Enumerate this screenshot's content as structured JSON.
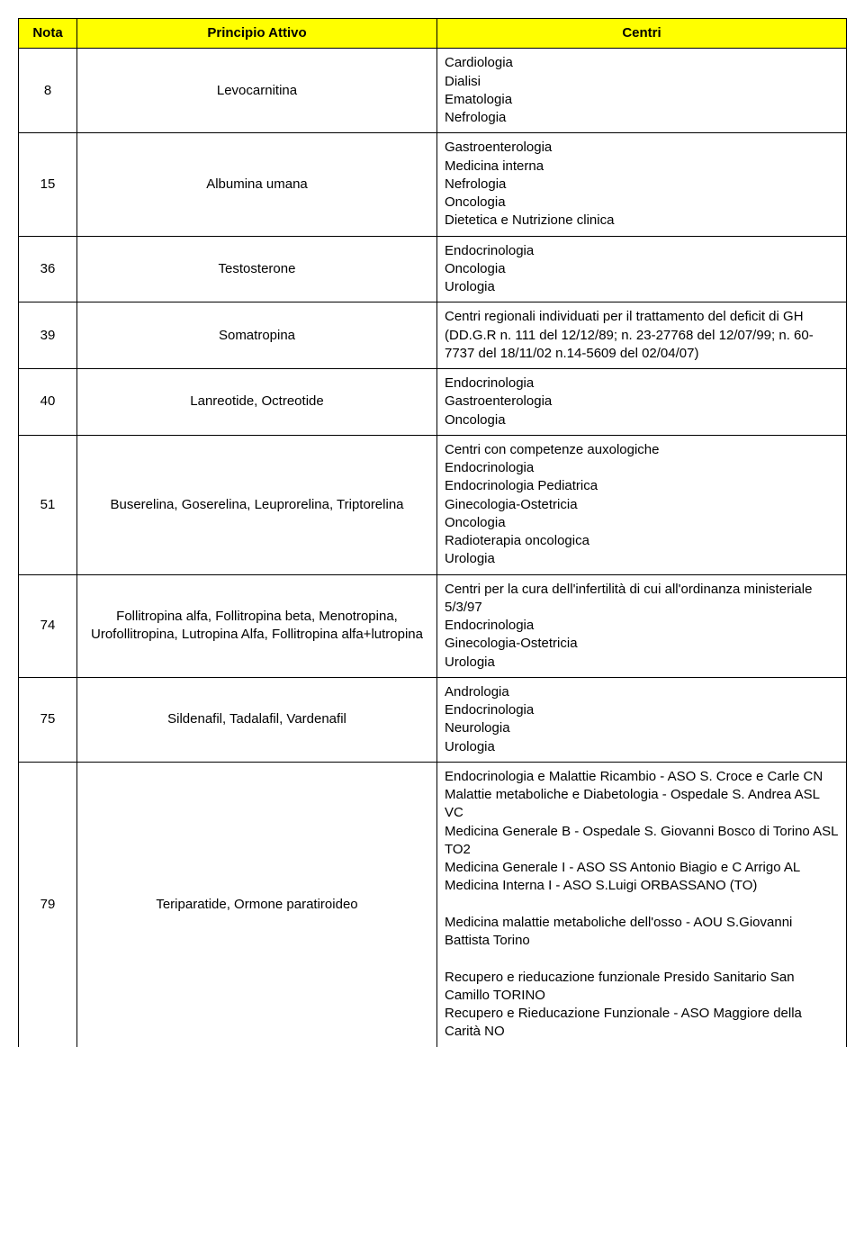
{
  "colors": {
    "header_bg": "#ffff00",
    "border": "#000000",
    "text": "#000000",
    "bg": "#ffffff"
  },
  "columns": {
    "nota": "Nota",
    "principio": "Principio Attivo",
    "centri": "Centri"
  },
  "rows": [
    {
      "nota": "8",
      "principio": "Levocarnitina",
      "centri": "Cardiologia\nDialisi\nEmatologia\nNefrologia"
    },
    {
      "nota": "15",
      "principio": "Albumina umana",
      "centri": "Gastroenterologia\nMedicina interna\nNefrologia\nOncologia\nDietetica e Nutrizione clinica"
    },
    {
      "nota": "36",
      "principio": "Testosterone",
      "centri": "Endocrinologia\nOncologia\nUrologia"
    },
    {
      "nota": "39",
      "principio": "Somatropina",
      "centri": "Centri regionali individuati per il trattamento del deficit di GH (DD.G.R n. 111 del 12/12/89; n. 23-27768 del 12/07/99; n. 60-7737 del 18/11/02 n.14-5609 del 02/04/07)"
    },
    {
      "nota": "40",
      "principio": "Lanreotide, Octreotide",
      "centri": "Endocrinologia\nGastroenterologia\nOncologia"
    },
    {
      "nota": "51",
      "principio": "Buserelina, Goserelina, Leuprorelina, Triptorelina",
      "centri": "Centri con competenze auxologiche\nEndocrinologia\nEndocrinologia Pediatrica\nGinecologia-Ostetricia\nOncologia\nRadioterapia oncologica\nUrologia"
    },
    {
      "nota": "74",
      "principio": "Follitropina alfa, Follitropina beta, Menotropina, Urofollitropina, Lutropina Alfa, Follitropina alfa+lutropina",
      "centri": "Centri per la cura dell'infertilità di cui all'ordinanza ministeriale  5/3/97\nEndocrinologia\nGinecologia-Ostetricia\nUrologia"
    },
    {
      "nota": "75",
      "principio": "Sildenafil, Tadalafil, Vardenafil",
      "centri": "Andrologia\nEndocrinologia\nNeurologia\nUrologia"
    },
    {
      "nota": "79",
      "principio": "Teriparatide, Ormone paratiroideo",
      "centri": "Endocrinologia e Malattie Ricambio - ASO S. Croce e Carle CN\nMalattie metaboliche e Diabetologia - Ospedale S. Andrea ASL VC\nMedicina Generale B - Ospedale S. Giovanni Bosco di Torino ASL TO2\nMedicina Generale I - ASO SS Antonio Biagio e C Arrigo AL\nMedicina Interna I - ASO S.Luigi ORBASSANO (TO)\n\nMedicina malattie metaboliche dell'osso - AOU S.Giovanni Battista Torino\n\nRecupero e rieducazione funzionale Presido Sanitario San Camillo TORINO\nRecupero e Rieducazione Funzionale - ASO Maggiore della Carità NO"
    }
  ]
}
